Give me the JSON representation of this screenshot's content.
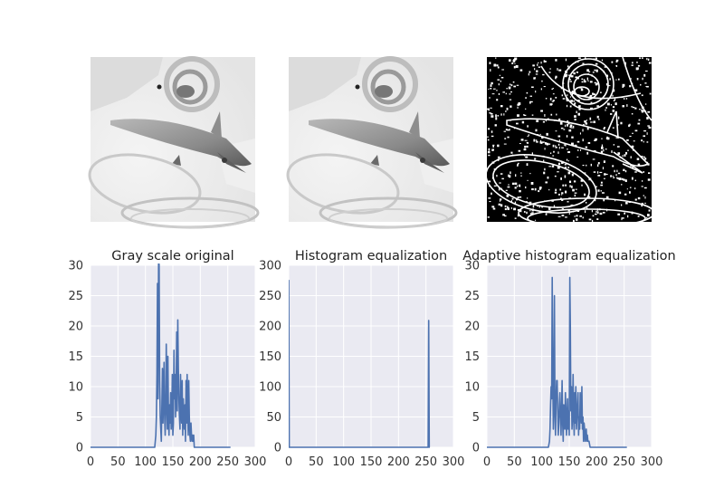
{
  "figure": {
    "images": [
      {
        "name": "grayscale-original-image",
        "variant": "gray"
      },
      {
        "name": "histogram-equalization-image",
        "variant": "gray"
      },
      {
        "name": "adaptive-equalization-image",
        "variant": "edges"
      }
    ],
    "colors": {
      "plot_background": "#eaeaf2",
      "grid": "#ffffff",
      "line": "#4c72b0"
    }
  },
  "chart_data": [
    {
      "type": "line",
      "title": "Gray scale original",
      "xlabel": "",
      "ylabel": "",
      "xlim": [
        0,
        300
      ],
      "ylim": [
        0,
        30
      ],
      "xticks": [
        0,
        50,
        100,
        150,
        200,
        250,
        300
      ],
      "yticks": [
        0,
        5,
        10,
        15,
        20,
        25,
        30
      ],
      "xtick_labels": [
        "0",
        "50",
        "100",
        "150",
        "200",
        "250",
        "300"
      ],
      "ytick_labels": [
        "0",
        "5",
        "10",
        "15",
        "20",
        "25",
        "30"
      ],
      "grid": true,
      "series": [
        {
          "x": [
            0,
            100,
            112,
            117,
            119,
            120,
            121,
            122,
            123,
            124,
            125,
            126,
            127,
            128,
            129,
            130,
            131,
            132,
            133,
            134,
            135,
            136,
            137,
            138,
            139,
            140,
            141,
            142,
            143,
            144,
            145,
            146,
            147,
            148,
            149,
            150,
            151,
            152,
            153,
            154,
            155,
            156,
            157,
            158,
            159,
            160,
            161,
            162,
            163,
            164,
            165,
            166,
            167,
            168,
            169,
            170,
            171,
            172,
            173,
            174,
            175,
            176,
            177,
            178,
            179,
            180,
            181,
            182,
            183,
            184,
            185,
            186,
            187,
            188,
            189,
            190,
            191,
            195,
            200,
            255
          ],
          "y": [
            0,
            0,
            0,
            0,
            2,
            5,
            12,
            27,
            8,
            31,
            30,
            11,
            5,
            3,
            1,
            7,
            13,
            4,
            9,
            14,
            5,
            2,
            6,
            17,
            8,
            3,
            15,
            5,
            2,
            7,
            4,
            9,
            3,
            5,
            12,
            2,
            4,
            16,
            8,
            12,
            5,
            10,
            19,
            6,
            21,
            13,
            8,
            5,
            3,
            12,
            7,
            4,
            11,
            2,
            8,
            5,
            3,
            7,
            1,
            11,
            4,
            12,
            6,
            2,
            11,
            5,
            2,
            1,
            4,
            2,
            1,
            2,
            1,
            2,
            0,
            0,
            0,
            0,
            0,
            0
          ]
        }
      ]
    },
    {
      "type": "line",
      "title": "Histogram equalization",
      "xlabel": "",
      "ylabel": "",
      "xlim": [
        0,
        300
      ],
      "ylim": [
        0,
        300
      ],
      "xticks": [
        0,
        50,
        100,
        150,
        200,
        250,
        300
      ],
      "yticks": [
        0,
        50,
        100,
        150,
        200,
        250,
        300
      ],
      "xtick_labels": [
        "0",
        "50",
        "100",
        "150",
        "200",
        "250",
        "300"
      ],
      "ytick_labels": [
        "0",
        "50",
        "100",
        "150",
        "200",
        "250",
        "300"
      ],
      "grid": true,
      "series": [
        {
          "x": [
            0,
            1,
            2,
            250,
            253,
            254,
            255,
            256,
            257
          ],
          "y": [
            276,
            0,
            0,
            0,
            0,
            0,
            209,
            0,
            0
          ]
        }
      ]
    },
    {
      "type": "line",
      "title": "Adaptive histogram equalization",
      "xlabel": "",
      "ylabel": "",
      "xlim": [
        0,
        300
      ],
      "ylim": [
        0,
        30
      ],
      "xticks": [
        0,
        50,
        100,
        150,
        200,
        250,
        300
      ],
      "yticks": [
        0,
        5,
        10,
        15,
        20,
        25,
        30
      ],
      "xtick_labels": [
        "0",
        "50",
        "100",
        "150",
        "200",
        "250",
        "300"
      ],
      "ytick_labels": [
        "0",
        "5",
        "10",
        "15",
        "20",
        "25",
        "30"
      ],
      "grid": true,
      "series": [
        {
          "x": [
            0,
            100,
            112,
            114,
            115,
            116,
            117,
            118,
            119,
            120,
            121,
            122,
            123,
            124,
            125,
            126,
            127,
            128,
            129,
            130,
            131,
            132,
            133,
            134,
            135,
            136,
            137,
            138,
            139,
            140,
            141,
            142,
            143,
            144,
            145,
            146,
            147,
            148,
            149,
            150,
            151,
            152,
            153,
            154,
            155,
            156,
            157,
            158,
            159,
            160,
            161,
            162,
            163,
            164,
            165,
            166,
            167,
            168,
            169,
            170,
            171,
            172,
            173,
            174,
            175,
            176,
            177,
            178,
            179,
            180,
            181,
            182,
            183,
            184,
            185,
            186,
            188,
            190,
            200,
            255
          ],
          "y": [
            0,
            0,
            0,
            1,
            3,
            7,
            10,
            8,
            28,
            12,
            3,
            10,
            25,
            5,
            2,
            8,
            11,
            11,
            6,
            2,
            4,
            7,
            9,
            5,
            2,
            6,
            11,
            4,
            1,
            7,
            5,
            3,
            9,
            6,
            2,
            5,
            8,
            3,
            6,
            2,
            28,
            20,
            6,
            10,
            3,
            5,
            12,
            5,
            2,
            9,
            4,
            10,
            3,
            5,
            7,
            9,
            2,
            5,
            3,
            9,
            6,
            4,
            10,
            3,
            5,
            1,
            4,
            3,
            1,
            2,
            3,
            1,
            2,
            1,
            1,
            1,
            0,
            0,
            0,
            0
          ]
        }
      ]
    }
  ]
}
